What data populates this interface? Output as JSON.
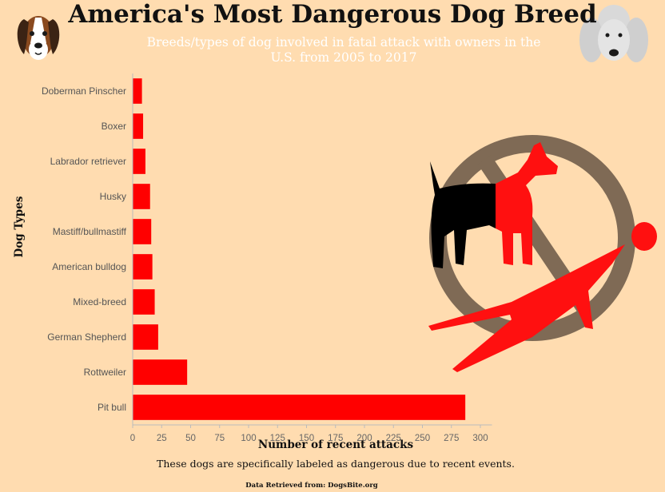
{
  "title": "America's Most Dangerous Dog Breed",
  "subtitle": "Breeds/types of dog involved in fatal attack with owners in the U.S. from 2005 to 2017",
  "footnote": "These dogs are specifically labeled as dangerous due to recent events.",
  "source": "Data Retrieved from: DogsBite.org",
  "icons": {
    "left": "beagle-face-icon",
    "right": "poodle-face-icon",
    "illustration": "no-dog-attack-icon"
  },
  "colors": {
    "background": "#ffdcb0",
    "bar": "#ff0000"
  },
  "chart_data": {
    "type": "bar",
    "orientation": "horizontal",
    "categories": [
      "Doberman Pinscher",
      "Boxer",
      "Labrador retriever",
      "Husky",
      "Mastiff/bullmastiff",
      "American bulldog",
      "Mixed-breed",
      "German Shepherd",
      "Rottweiler",
      "Pit bull"
    ],
    "values": [
      8,
      9,
      11,
      15,
      16,
      17,
      19,
      22,
      47,
      287
    ],
    "xlabel": "Number of recent attacks",
    "ylabel": "Dog Types",
    "xlim": [
      0,
      310
    ],
    "xticks": [
      0,
      25,
      50,
      75,
      100,
      125,
      150,
      175,
      200,
      225,
      250,
      275,
      300
    ],
    "grid": false
  }
}
